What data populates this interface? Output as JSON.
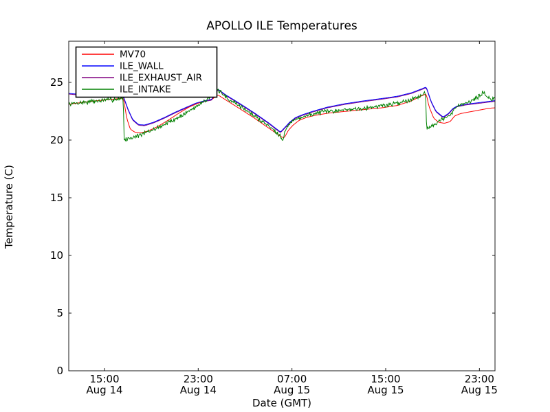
{
  "figure": {
    "background": "#ffffff",
    "frame_color": "#1a1a1a"
  },
  "chart": {
    "title": "APOLLO ILE Temperatures",
    "xlabel": "Date (GMT)",
    "ylabel": "Temperature (C)"
  },
  "legend": {
    "entries": [
      {
        "label": "MV70",
        "color": "#ff0000"
      },
      {
        "label": "ILE_WALL",
        "color": "#0000ff"
      },
      {
        "label": "ILE_EXHAUST_AIR",
        "color": "#800080"
      },
      {
        "label": "ILE_INTAKE",
        "color": "#008000"
      }
    ]
  },
  "chart_data": {
    "type": "line",
    "title": "APOLLO ILE Temperatures",
    "xlabel": "Date (GMT)",
    "ylabel": "Temperature (C)",
    "x_unit": "hours_since_Aug14_0000_GMT",
    "xlim": [
      11.95,
      48.33
    ],
    "ylim": [
      0,
      28.57
    ],
    "grid": false,
    "legend_position": "upper left",
    "x_ticks": [
      {
        "value": 15,
        "time": "15:00",
        "date": "Aug 14"
      },
      {
        "value": 23,
        "time": "23:00",
        "date": "Aug 14"
      },
      {
        "value": 31,
        "time": "07:00",
        "date": "Aug 15"
      },
      {
        "value": 39,
        "time": "15:00",
        "date": "Aug 15"
      },
      {
        "value": 47,
        "time": "23:00",
        "date": "Aug 15"
      }
    ],
    "y_ticks": [
      0,
      5,
      10,
      15,
      20,
      25
    ],
    "series": [
      {
        "name": "MV70",
        "color": "#ff0000",
        "z": 1,
        "smooth": true,
        "noisy": false,
        "points": [
          [
            11.95,
            23.1
          ],
          [
            13.0,
            23.25
          ],
          [
            14.2,
            23.4
          ],
          [
            15.5,
            23.52
          ],
          [
            16.3,
            23.6
          ],
          [
            16.62,
            23.63
          ],
          [
            16.9,
            21.9
          ],
          [
            17.2,
            20.95
          ],
          [
            17.6,
            20.68
          ],
          [
            18.1,
            20.62
          ],
          [
            18.7,
            20.78
          ],
          [
            19.5,
            21.15
          ],
          [
            20.4,
            21.7
          ],
          [
            21.3,
            22.3
          ],
          [
            22.2,
            22.85
          ],
          [
            23.0,
            23.2
          ],
          [
            23.6,
            23.42
          ],
          [
            24.2,
            23.55
          ],
          [
            24.68,
            23.92
          ],
          [
            25.4,
            23.45
          ],
          [
            26.5,
            22.75
          ],
          [
            27.8,
            21.9
          ],
          [
            29.0,
            21.05
          ],
          [
            29.8,
            20.5
          ],
          [
            30.15,
            20.25
          ],
          [
            30.35,
            20.2
          ],
          [
            30.7,
            20.85
          ],
          [
            31.1,
            21.3
          ],
          [
            31.6,
            21.7
          ],
          [
            32.2,
            21.95
          ],
          [
            33.0,
            22.15
          ],
          [
            34.2,
            22.35
          ],
          [
            35.7,
            22.5
          ],
          [
            37.2,
            22.65
          ],
          [
            38.7,
            22.8
          ],
          [
            40.0,
            23.0
          ],
          [
            41.2,
            23.4
          ],
          [
            42.1,
            23.85
          ],
          [
            42.46,
            24.0
          ],
          [
            42.7,
            22.9
          ],
          [
            43.1,
            21.9
          ],
          [
            43.5,
            21.55
          ],
          [
            44.0,
            21.45
          ],
          [
            44.5,
            21.6
          ],
          [
            44.9,
            22.1
          ],
          [
            45.4,
            22.3
          ],
          [
            46.2,
            22.45
          ],
          [
            47.0,
            22.6
          ],
          [
            47.8,
            22.75
          ],
          [
            48.33,
            22.8
          ]
        ]
      },
      {
        "name": "ILE_WALL",
        "color": "#0000ff",
        "z": 2,
        "smooth": true,
        "noisy": false,
        "points": [
          [
            11.95,
            24.05
          ],
          [
            13.0,
            23.95
          ],
          [
            14.5,
            23.85
          ],
          [
            15.8,
            23.8
          ],
          [
            16.62,
            23.78
          ],
          [
            17.0,
            22.7
          ],
          [
            17.4,
            21.8
          ],
          [
            17.9,
            21.35
          ],
          [
            18.4,
            21.3
          ],
          [
            19.2,
            21.55
          ],
          [
            20.1,
            21.95
          ],
          [
            21.0,
            22.4
          ],
          [
            22.0,
            22.85
          ],
          [
            22.8,
            23.2
          ],
          [
            23.5,
            23.4
          ],
          [
            24.15,
            23.52
          ],
          [
            24.68,
            24.42
          ],
          [
            25.3,
            23.95
          ],
          [
            26.5,
            23.2
          ],
          [
            27.8,
            22.35
          ],
          [
            29.0,
            21.5
          ],
          [
            29.7,
            20.95
          ],
          [
            30.02,
            20.7
          ],
          [
            30.4,
            21.1
          ],
          [
            30.8,
            21.55
          ],
          [
            31.3,
            21.95
          ],
          [
            31.9,
            22.2
          ],
          [
            32.8,
            22.5
          ],
          [
            34.0,
            22.85
          ],
          [
            35.5,
            23.15
          ],
          [
            37.0,
            23.38
          ],
          [
            38.5,
            23.58
          ],
          [
            40.0,
            23.8
          ],
          [
            41.2,
            24.1
          ],
          [
            42.1,
            24.45
          ],
          [
            42.46,
            24.6
          ],
          [
            42.9,
            23.3
          ],
          [
            43.3,
            22.5
          ],
          [
            43.9,
            22.0
          ],
          [
            44.35,
            22.3
          ],
          [
            44.75,
            22.75
          ],
          [
            45.1,
            22.95
          ],
          [
            45.8,
            23.1
          ],
          [
            46.6,
            23.2
          ],
          [
            47.4,
            23.3
          ],
          [
            48.33,
            23.42
          ]
        ]
      },
      {
        "name": "ILE_EXHAUST_AIR",
        "color": "#800080",
        "z": 0,
        "smooth": true,
        "noisy": false,
        "points": [
          [
            11.95,
            23.99
          ],
          [
            13.0,
            23.89
          ],
          [
            14.5,
            23.79
          ],
          [
            15.8,
            23.74
          ],
          [
            16.62,
            23.72
          ],
          [
            17.0,
            22.64
          ],
          [
            17.4,
            21.74
          ],
          [
            17.9,
            21.29
          ],
          [
            18.4,
            21.24
          ],
          [
            19.2,
            21.49
          ],
          [
            20.1,
            21.89
          ],
          [
            21.0,
            22.34
          ],
          [
            22.0,
            22.79
          ],
          [
            22.8,
            23.14
          ],
          [
            23.5,
            23.34
          ],
          [
            24.15,
            23.46
          ],
          [
            24.68,
            24.36
          ],
          [
            25.3,
            23.89
          ],
          [
            26.5,
            23.14
          ],
          [
            27.8,
            22.29
          ],
          [
            29.0,
            21.44
          ],
          [
            29.7,
            20.89
          ],
          [
            30.02,
            20.64
          ],
          [
            30.4,
            21.04
          ],
          [
            30.8,
            21.49
          ],
          [
            31.3,
            21.89
          ],
          [
            31.9,
            22.14
          ],
          [
            32.8,
            22.44
          ],
          [
            34.0,
            22.79
          ],
          [
            35.5,
            23.09
          ],
          [
            37.0,
            23.32
          ],
          [
            38.5,
            23.52
          ],
          [
            40.0,
            23.74
          ],
          [
            41.2,
            24.04
          ],
          [
            42.1,
            24.39
          ],
          [
            42.46,
            24.54
          ],
          [
            42.9,
            23.24
          ],
          [
            43.3,
            22.44
          ],
          [
            43.9,
            21.94
          ],
          [
            44.35,
            22.24
          ],
          [
            44.75,
            22.69
          ],
          [
            45.1,
            22.89
          ],
          [
            45.8,
            23.04
          ],
          [
            46.6,
            23.14
          ],
          [
            47.4,
            23.24
          ],
          [
            48.33,
            23.36
          ]
        ]
      },
      {
        "name": "ILE_INTAKE",
        "color": "#008000",
        "z": 3,
        "smooth": false,
        "noisy": true,
        "noise_amp": 0.12,
        "points": [
          [
            11.95,
            23.1
          ],
          [
            13.0,
            23.25
          ],
          [
            14.0,
            23.35
          ],
          [
            15.0,
            23.45
          ],
          [
            16.0,
            23.55
          ],
          [
            16.6,
            23.65
          ],
          [
            16.68,
            20.0
          ],
          [
            17.3,
            20.2
          ],
          [
            18.2,
            20.5
          ],
          [
            19.2,
            20.9
          ],
          [
            20.2,
            21.4
          ],
          [
            21.2,
            21.9
          ],
          [
            22.2,
            22.5
          ],
          [
            23.1,
            23.1
          ],
          [
            23.9,
            23.7
          ],
          [
            24.4,
            24.1
          ],
          [
            24.68,
            24.32
          ],
          [
            25.5,
            23.6
          ],
          [
            26.5,
            23.0
          ],
          [
            27.5,
            22.3
          ],
          [
            28.5,
            21.6
          ],
          [
            29.4,
            20.95
          ],
          [
            30.0,
            20.4
          ],
          [
            30.25,
            20.05
          ],
          [
            30.45,
            20.9
          ],
          [
            30.75,
            21.35
          ],
          [
            31.15,
            21.7
          ],
          [
            31.7,
            21.95
          ],
          [
            32.5,
            22.2
          ],
          [
            33.8,
            22.45
          ],
          [
            35.2,
            22.6
          ],
          [
            36.8,
            22.75
          ],
          [
            38.2,
            22.9
          ],
          [
            39.5,
            23.1
          ],
          [
            40.8,
            23.4
          ],
          [
            41.8,
            23.8
          ],
          [
            42.4,
            24.1
          ],
          [
            42.5,
            20.9
          ],
          [
            43.0,
            21.3
          ],
          [
            43.6,
            21.7
          ],
          [
            44.2,
            21.95
          ],
          [
            44.55,
            22.15
          ],
          [
            44.9,
            22.7
          ],
          [
            45.3,
            23.05
          ],
          [
            45.9,
            23.25
          ],
          [
            46.5,
            23.5
          ],
          [
            47.0,
            23.85
          ],
          [
            47.35,
            24.15
          ],
          [
            47.65,
            23.75
          ],
          [
            47.9,
            23.55
          ],
          [
            48.15,
            23.6
          ],
          [
            48.33,
            23.65
          ]
        ]
      }
    ]
  }
}
